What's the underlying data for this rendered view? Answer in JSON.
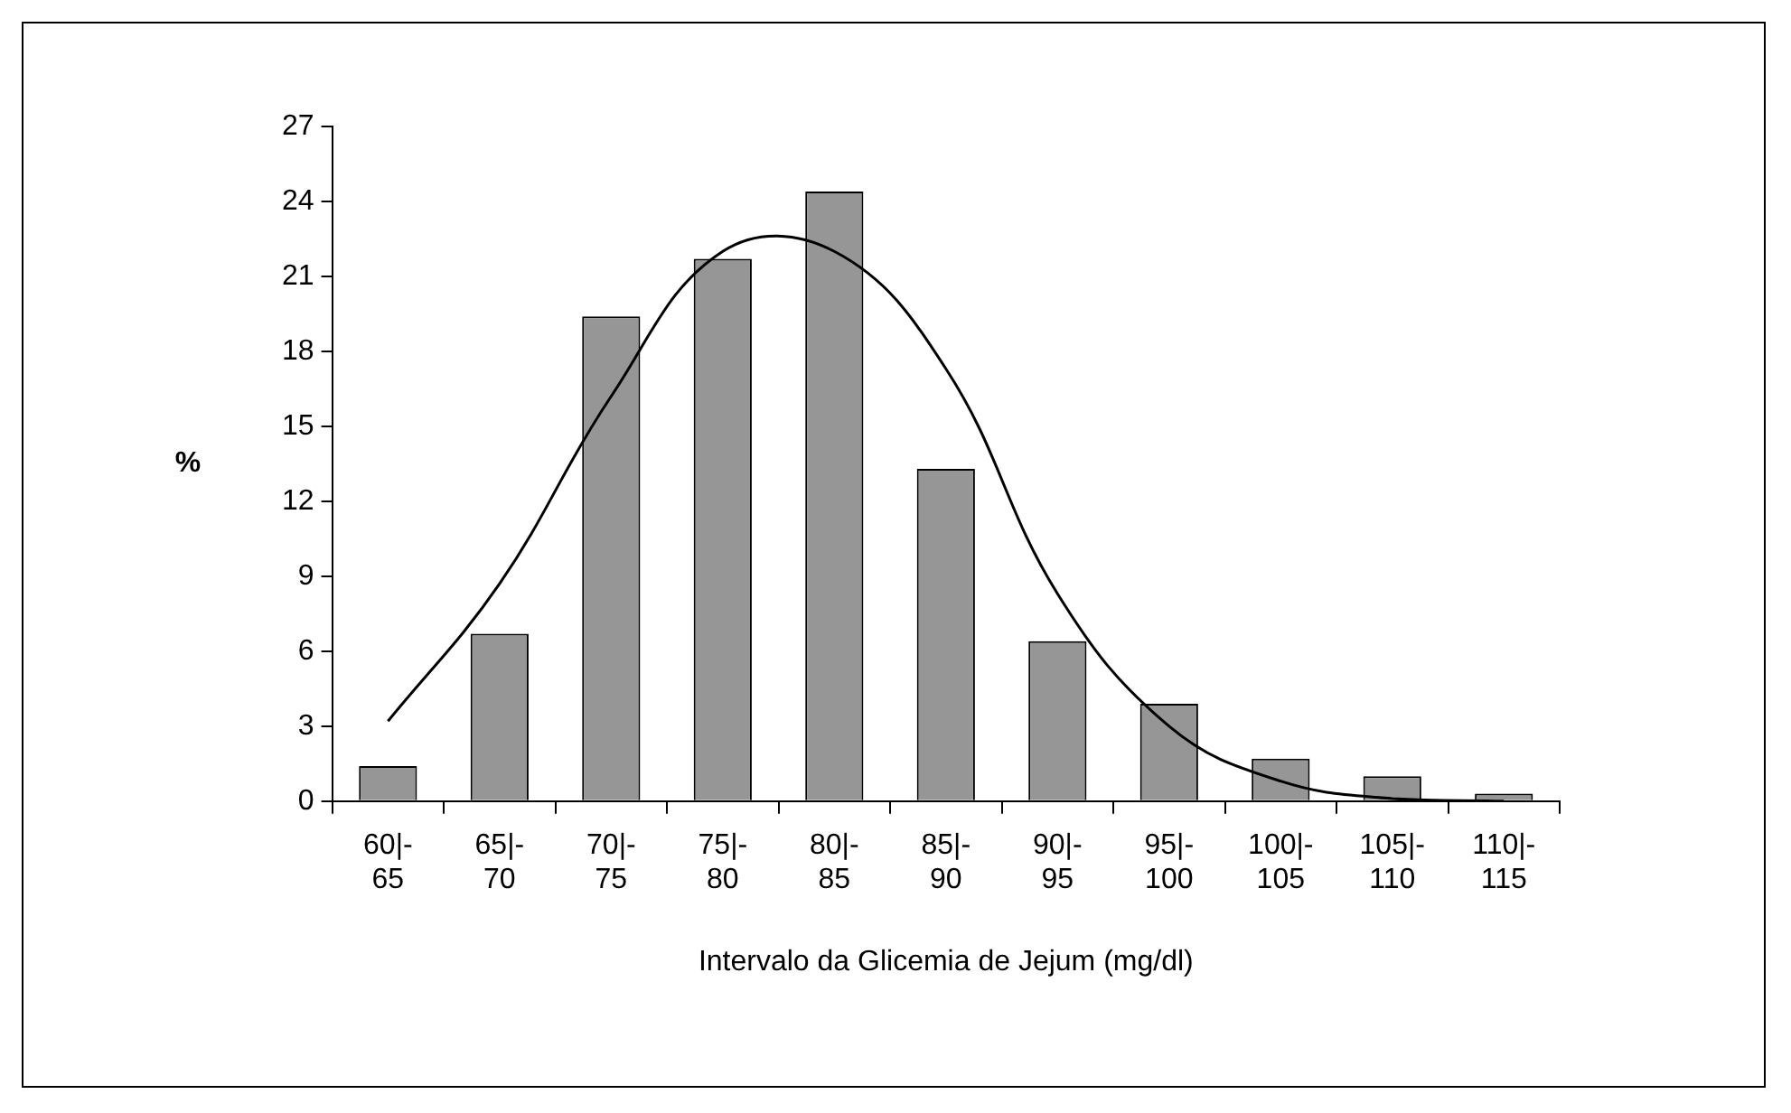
{
  "chart_data": {
    "type": "bar",
    "xlabel": "Intervalo da Glicemia de Jejum (mg/dl)",
    "ylabel": "%",
    "categories": [
      "60|-65",
      "65|-70",
      "70|-75",
      "75|-80",
      "80|-85",
      "85|-90",
      "90|-95",
      "95|-100",
      "100|-105",
      "105|-110",
      "110|-115"
    ],
    "series": [
      {
        "color": "#969696",
        "values": [
          1.4,
          6.7,
          19.4,
          21.7,
          24.4,
          13.3,
          6.4,
          3.9,
          1.7,
          1.0,
          0.3
        ]
      },
      {
        "type": "line",
        "color": "#000000",
        "values": [
          3.2,
          8.7,
          16.2,
          22.0,
          22.0,
          17.3,
          8.3,
          3.0,
          0.8,
          0.1,
          0
        ]
      }
    ],
    "ylim": [
      0,
      27
    ],
    "yticks": [
      0,
      3,
      6,
      9,
      12,
      15,
      18,
      21,
      24,
      27
    ],
    "grid": false,
    "legend": false,
    "marker": "none"
  }
}
